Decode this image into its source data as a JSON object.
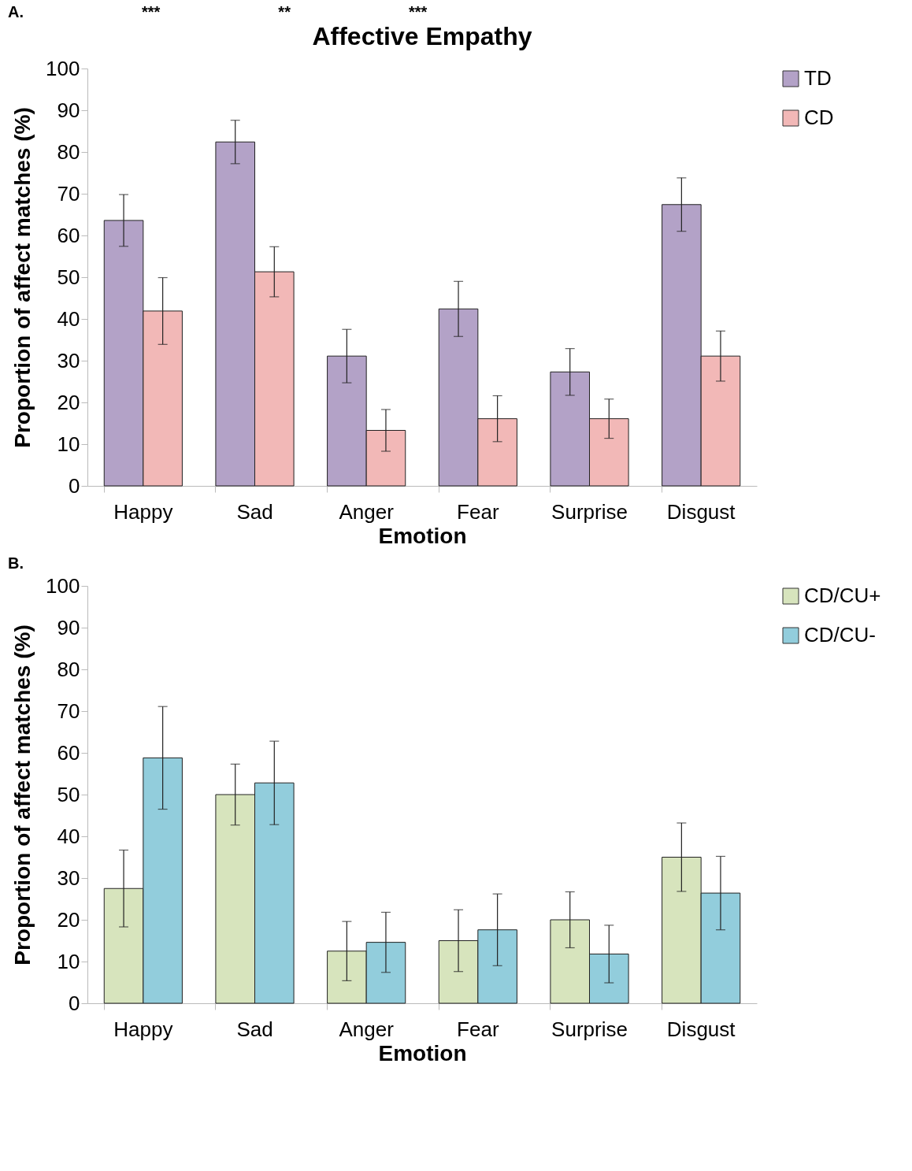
{
  "chart_data": [
    {
      "type": "bar",
      "title": "Affective Empathy",
      "xlabel": "Emotion",
      "ylabel": "Proportion of affect matches (%)",
      "categories": [
        "Happy",
        "Sad",
        "Anger",
        "Fear",
        "Surprise",
        "Disgust"
      ],
      "series": [
        {
          "name": "TD",
          "color": "#b3a2c7",
          "values": [
            63.6,
            82.4,
            31.1,
            42.4,
            27.3,
            67.4
          ],
          "errors": [
            6.2,
            5.2,
            6.4,
            6.6,
            5.6,
            6.4
          ]
        },
        {
          "name": "CD",
          "color": "#f2b8b7",
          "values": [
            41.9,
            51.3,
            13.3,
            16.1,
            16.1,
            31.1
          ],
          "errors": [
            8,
            6,
            5,
            5.5,
            4.7,
            6
          ]
        }
      ],
      "ylim": [
        0,
        100
      ],
      "yticks": [
        0,
        10,
        20,
        30,
        40,
        50,
        60,
        70,
        80,
        90,
        100
      ],
      "grid": false,
      "legend": "right",
      "annotations": [
        "A.",
        "***",
        "**",
        "***"
      ]
    },
    {
      "type": "bar",
      "xlabel": "Emotion",
      "ylabel": "Proportion of affect matches (%)",
      "categories": [
        "Happy",
        "Sad",
        "Anger",
        "Fear",
        "Surprise",
        "Disgust"
      ],
      "series": [
        {
          "name": "CD/CU+",
          "color": "#d7e4bd",
          "values": [
            27.5,
            50,
            12.5,
            15,
            20,
            35
          ],
          "errors": [
            9.2,
            7.3,
            7.1,
            7.4,
            6.7,
            8.2
          ]
        },
        {
          "name": "CD/CU-",
          "color": "#92cddc",
          "values": [
            58.8,
            52.8,
            14.6,
            17.6,
            11.8,
            26.4
          ],
          "errors": [
            12.3,
            10,
            7.2,
            8.6,
            6.9,
            8.8
          ]
        }
      ],
      "ylim": [
        0,
        100
      ],
      "yticks": [
        0,
        10,
        20,
        30,
        40,
        50,
        60,
        70,
        80,
        90,
        100
      ],
      "grid": false,
      "legend": "right",
      "annotations": [
        "B."
      ]
    }
  ]
}
